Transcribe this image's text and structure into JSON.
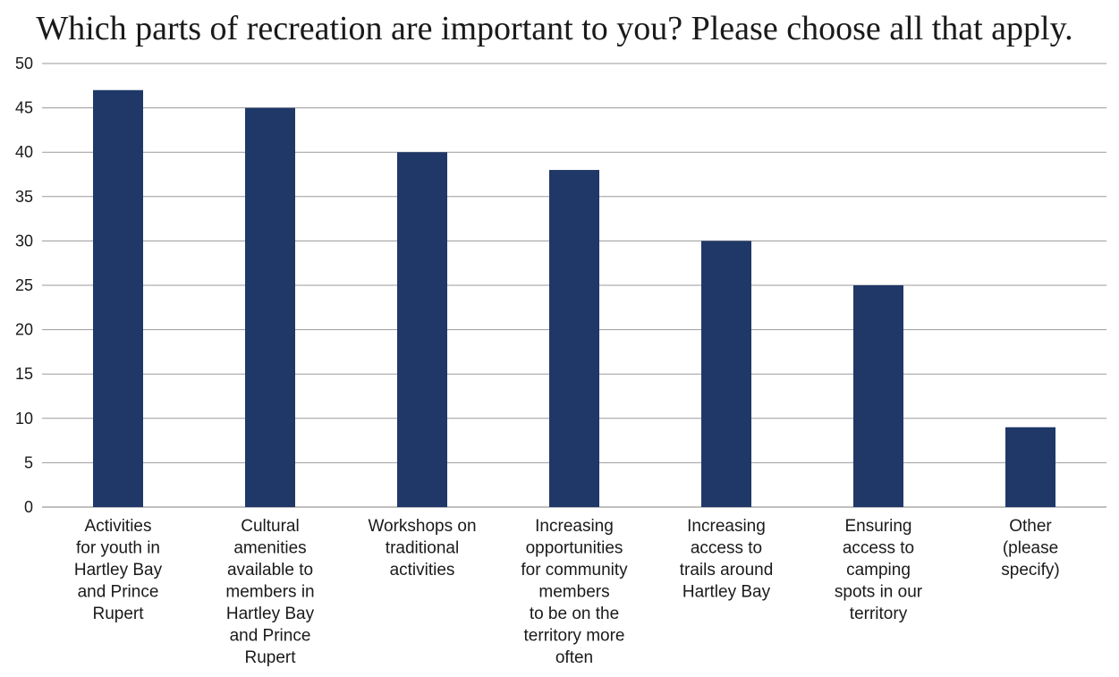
{
  "chart_data": {
    "type": "bar",
    "title": "Which parts of recreation are important to you? Please choose all that apply.",
    "xlabel": "",
    "ylabel": "",
    "categories": [
      [
        "Activities",
        "for youth in",
        "Hartley Bay",
        "and Prince",
        "Rupert"
      ],
      [
        "Cultural",
        "amenities",
        "available to",
        "members in",
        "Hartley Bay",
        "and Prince",
        "Rupert"
      ],
      [
        "Workshops on",
        "traditional",
        "activities"
      ],
      [
        "Increasing",
        "opportunities",
        "for community",
        "members",
        "to be on the",
        "territory more",
        "often"
      ],
      [
        "Increasing",
        "access to",
        "trails around",
        "Hartley Bay"
      ],
      [
        "Ensuring",
        "access to",
        "camping",
        "spots in our",
        "territory"
      ],
      [
        "Other",
        "(please",
        "specify)"
      ]
    ],
    "values": [
      47,
      45,
      40,
      38,
      30,
      25,
      9
    ],
    "ylim": [
      0,
      50
    ],
    "yticks": [
      0,
      5,
      10,
      15,
      20,
      25,
      30,
      35,
      40,
      45,
      50
    ],
    "grid": true,
    "legend": "none",
    "bar_color": "#1f3868"
  }
}
